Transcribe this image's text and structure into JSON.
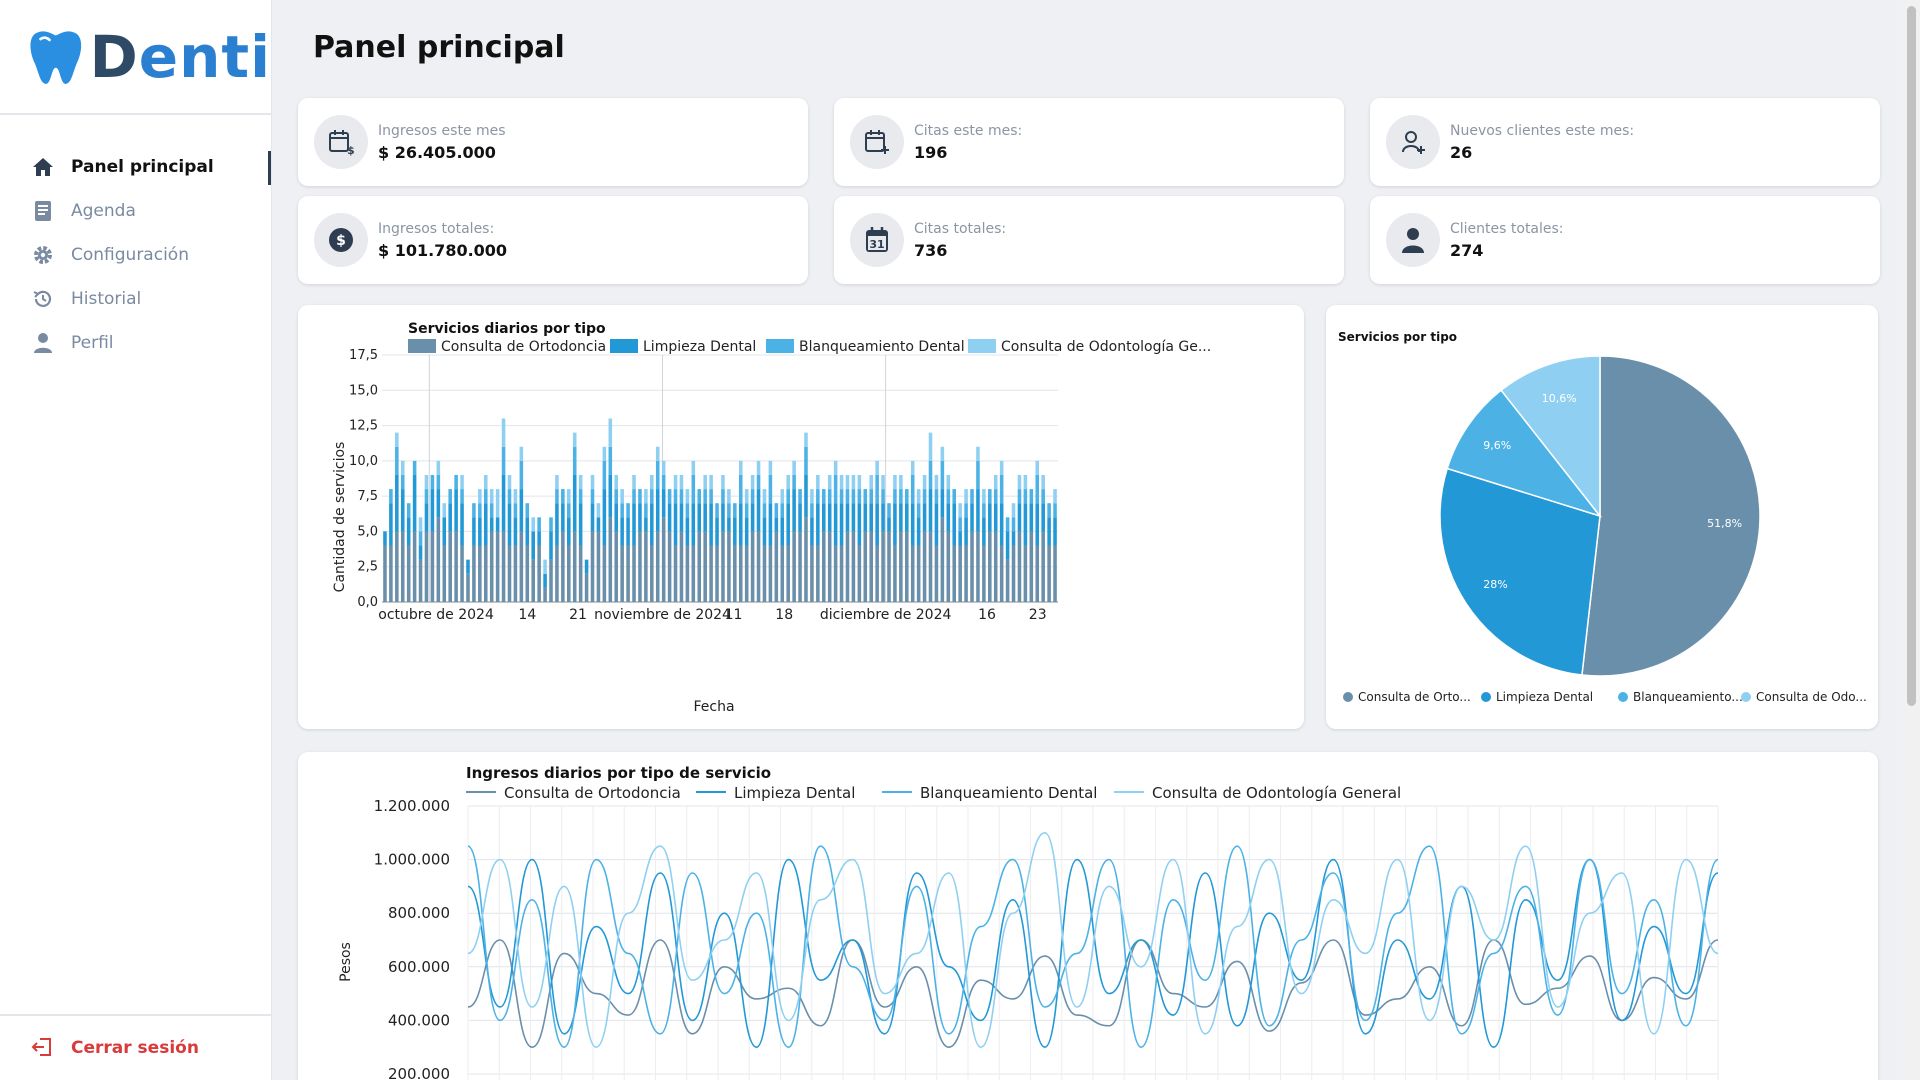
{
  "brand": {
    "name_a": "D",
    "name_b": "enti"
  },
  "sidebar": {
    "items": [
      {
        "label": "Panel principal",
        "icon": "home-icon",
        "active": true
      },
      {
        "label": "Agenda",
        "icon": "book-icon",
        "active": false
      },
      {
        "label": "Configuración",
        "icon": "gear-icon",
        "active": false
      },
      {
        "label": "Historial",
        "icon": "history-icon",
        "active": false
      },
      {
        "label": "Perfil",
        "icon": "user-icon",
        "active": false
      }
    ],
    "logout": "Cerrar sesión"
  },
  "page": {
    "title": "Panel principal"
  },
  "stats": [
    {
      "label": "Ingresos este mes",
      "value": "$ 26.405.000",
      "icon": "calendar-dollar-icon"
    },
    {
      "label": "Citas este mes:",
      "value": "196",
      "icon": "calendar-plus-icon"
    },
    {
      "label": "Nuevos clientes este mes:",
      "value": "26",
      "icon": "user-plus-icon"
    },
    {
      "label": "Ingresos totales:",
      "value": "$ 101.780.000",
      "icon": "dollar-circle-icon"
    },
    {
      "label": "Citas totales:",
      "value": "736",
      "icon": "calendar-31-icon"
    },
    {
      "label": "Clientes totales:",
      "value": "274",
      "icon": "person-icon"
    }
  ],
  "colors": {
    "ortodoncia": "#6a8fab",
    "limpieza": "#2398d6",
    "blanqueamiento": "#4cb2e6",
    "consulta": "#8fd0f2"
  },
  "bar_chart": {
    "title": "Servicios diarios por tipo",
    "legend": [
      "Consulta de Ortodoncia",
      "Limpieza Dental",
      "Blanqueamiento Dental",
      "Consulta de Odontología Ge..."
    ],
    "xlabel": "Fecha",
    "ylabel": "Cantidad de servicios",
    "yticks": [
      "0,0",
      "2,5",
      "5,0",
      "7,5",
      "10,0",
      "12,5",
      "15,0",
      "17,5"
    ],
    "xticks": [
      "octubre de 2024",
      "14",
      "21",
      "noviembre de 2024",
      "11",
      "18",
      "diciembre de 2024",
      "16",
      "23"
    ]
  },
  "pie_chart": {
    "title": "Servicios por tipo",
    "labels": [
      "51,8%",
      "28%",
      "9,6%",
      "10,6%"
    ],
    "legend": [
      "Consulta de Orto...",
      "Limpieza Dental",
      "Blanqueamiento...",
      "Consulta de Odo..."
    ]
  },
  "line_chart": {
    "title": "Ingresos diarios por tipo de servicio",
    "legend": [
      "Consulta de Ortodoncia",
      "Limpieza Dental",
      "Blanqueamiento Dental",
      "Consulta de Odontología General"
    ],
    "ylabel": "Pesos",
    "yticks": [
      "200.000",
      "400.000",
      "600.000",
      "800.000",
      "1.000.000",
      "1.200.000"
    ]
  },
  "chart_data": [
    {
      "type": "bar",
      "title": "Servicios diarios por tipo",
      "xlabel": "Fecha",
      "ylabel": "Cantidad de servicios",
      "ylim": [
        0,
        17.5
      ],
      "x_range": [
        "2024-10-01",
        "2024-12-23"
      ],
      "series": [
        {
          "name": "Consulta de Ortodoncia",
          "values": [
            4,
            4,
            5,
            5,
            4,
            5,
            3,
            5,
            5,
            6,
            4,
            5,
            5,
            4,
            2,
            4,
            4,
            4,
            5,
            5,
            5,
            4,
            4,
            5,
            4,
            3,
            4,
            1,
            3,
            4,
            5,
            4,
            5,
            4,
            2,
            5,
            5,
            4,
            6,
            5,
            4,
            4,
            4,
            5,
            5,
            4,
            5,
            6,
            5,
            4,
            5,
            4,
            4,
            5,
            5,
            4,
            4,
            5,
            5,
            4,
            4,
            4,
            5,
            5,
            4,
            4,
            5,
            4,
            4,
            5,
            5,
            6,
            4,
            4,
            5,
            5,
            4,
            4,
            5,
            5,
            4,
            5,
            5,
            4,
            5,
            5,
            4,
            5,
            5,
            4,
            4,
            5,
            5,
            4,
            6,
            5,
            4,
            4,
            4,
            5,
            5,
            4,
            5,
            5,
            4,
            3,
            4,
            5,
            4,
            5,
            4,
            5,
            4,
            4
          ]
        },
        {
          "name": "Limpieza Dental",
          "values": [
            1,
            3,
            4,
            3,
            2,
            4,
            1,
            2,
            3,
            2,
            2,
            2,
            3,
            3,
            1,
            2,
            2,
            3,
            1,
            1,
            4,
            3,
            2,
            3,
            2,
            2,
            1,
            1,
            2,
            3,
            2,
            2,
            4,
            3,
            1,
            2,
            1,
            4,
            3,
            2,
            2,
            2,
            3,
            2,
            1,
            3,
            3,
            2,
            2,
            3,
            2,
            2,
            3,
            2,
            2,
            3,
            2,
            2,
            1,
            2,
            3,
            2,
            2,
            3,
            2,
            3,
            1,
            2,
            3,
            3,
            2,
            3,
            2,
            3,
            2,
            2,
            3,
            3,
            2,
            2,
            3,
            2,
            2,
            3,
            2,
            1,
            3,
            2,
            2,
            3,
            2,
            2,
            3,
            3,
            2,
            2,
            3,
            1,
            2,
            2,
            3,
            2,
            2,
            2,
            3,
            2,
            1,
            2,
            3,
            2,
            3,
            2,
            2,
            2
          ]
        },
        {
          "name": "Blanqueamiento Dental",
          "values": [
            0,
            1,
            2,
            1,
            1,
            1,
            1,
            1,
            1,
            1,
            0,
            1,
            1,
            1,
            0,
            1,
            1,
            1,
            1,
            0,
            2,
            1,
            1,
            2,
            1,
            0,
            1,
            0,
            1,
            1,
            1,
            1,
            2,
            1,
            0,
            1,
            0,
            2,
            2,
            1,
            1,
            1,
            1,
            1,
            1,
            1,
            2,
            1,
            1,
            1,
            1,
            1,
            2,
            1,
            1,
            1,
            1,
            1,
            1,
            1,
            2,
            1,
            1,
            1,
            1,
            2,
            1,
            1,
            1,
            1,
            1,
            2,
            1,
            1,
            1,
            1,
            2,
            1,
            1,
            1,
            1,
            1,
            1,
            2,
            1,
            1,
            1,
            1,
            1,
            2,
            1,
            1,
            2,
            1,
            2,
            1,
            1,
            1,
            1,
            1,
            2,
            1,
            1,
            1,
            2,
            1,
            1,
            1,
            1,
            1,
            2,
            1,
            1,
            1
          ]
        },
        {
          "name": "Consulta de Odontología General",
          "values": [
            0,
            0,
            1,
            1,
            0,
            0,
            1,
            1,
            0,
            1,
            1,
            0,
            0,
            1,
            0,
            0,
            1,
            1,
            1,
            2,
            2,
            1,
            1,
            1,
            0,
            1,
            0,
            1,
            0,
            1,
            0,
            1,
            1,
            1,
            0,
            1,
            1,
            1,
            2,
            1,
            1,
            0,
            1,
            0,
            1,
            1,
            1,
            1,
            0,
            1,
            1,
            1,
            1,
            0,
            1,
            1,
            0,
            1,
            1,
            0,
            1,
            1,
            1,
            1,
            1,
            1,
            0,
            1,
            1,
            1,
            0,
            1,
            1,
            1,
            0,
            1,
            1,
            1,
            1,
            1,
            1,
            0,
            1,
            1,
            1,
            0,
            1,
            1,
            0,
            1,
            1,
            1,
            2,
            1,
            1,
            1,
            0,
            1,
            1,
            0,
            1,
            1,
            0,
            1,
            1,
            0,
            1,
            1,
            1,
            0,
            1,
            1,
            0,
            1
          ]
        }
      ]
    },
    {
      "type": "pie",
      "title": "Servicios por tipo",
      "categories": [
        "Consulta de Ortodoncia",
        "Limpieza Dental",
        "Blanqueamiento Dental",
        "Consulta de Odontología General"
      ],
      "values": [
        51.8,
        28,
        9.6,
        10.6
      ]
    },
    {
      "type": "line",
      "title": "Ingresos diarios por tipo de servicio",
      "ylabel": "Pesos",
      "ylim": [
        200000,
        1200000
      ],
      "series": [
        {
          "name": "Consulta de Ortodoncia",
          "values": [
            450000,
            700000,
            300000,
            650000,
            500000,
            420000,
            700000,
            350000,
            600000,
            480000,
            520000,
            380000,
            700000,
            450000,
            600000,
            300000,
            550000,
            480000,
            640000,
            420000,
            380000,
            700000,
            500000,
            450000,
            620000,
            360000,
            540000,
            700000,
            420000,
            480000,
            600000,
            380000,
            700000,
            460000,
            520000,
            640000,
            400000,
            560000,
            480000,
            700000
          ]
        },
        {
          "name": "Limpieza Dental",
          "values": [
            900000,
            450000,
            1000000,
            350000,
            750000,
            500000,
            950000,
            400000,
            800000,
            300000,
            1000000,
            550000,
            700000,
            350000,
            950000,
            600000,
            400000,
            850000,
            300000,
            1000000,
            500000,
            700000,
            420000,
            950000,
            380000,
            800000,
            550000,
            1000000,
            350000,
            700000,
            480000,
            900000,
            300000,
            850000,
            550000,
            1000000,
            400000,
            750000,
            500000,
            950000
          ]
        },
        {
          "name": "Blanqueamiento Dental",
          "values": [
            1050000,
            400000,
            850000,
            300000,
            1000000,
            650000,
            350000,
            950000,
            500000,
            800000,
            300000,
            1050000,
            600000,
            400000,
            900000,
            350000,
            750000,
            1000000,
            450000,
            650000,
            1000000,
            300000,
            850000,
            550000,
            1050000,
            380000,
            700000,
            950000,
            400000,
            800000,
            1050000,
            350000,
            650000,
            900000,
            420000,
            1000000,
            500000,
            850000,
            380000,
            1000000
          ]
        },
        {
          "name": "Consulta de Odontología General",
          "values": [
            650000,
            1000000,
            450000,
            900000,
            300000,
            800000,
            1050000,
            550000,
            700000,
            950000,
            400000,
            850000,
            1000000,
            500000,
            650000,
            950000,
            300000,
            800000,
            1100000,
            450000,
            900000,
            600000,
            1000000,
            350000,
            750000,
            1000000,
            500000,
            850000,
            650000,
            1000000,
            400000,
            900000,
            700000,
            1050000,
            450000,
            800000,
            950000,
            350000,
            1000000,
            650000
          ]
        }
      ]
    }
  ]
}
